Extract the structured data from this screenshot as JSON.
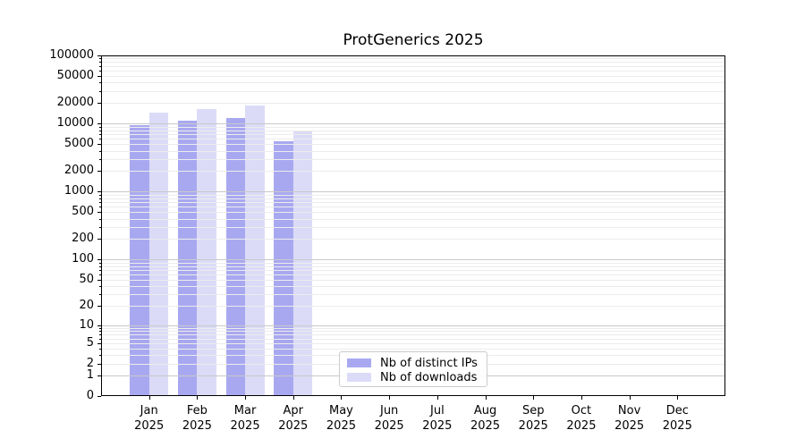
{
  "chart_data": {
    "type": "bar",
    "title": "ProtGenerics 2025",
    "x_ticks": [
      {
        "month": "Jan",
        "year": "2025"
      },
      {
        "month": "Feb",
        "year": "2025"
      },
      {
        "month": "Mar",
        "year": "2025"
      },
      {
        "month": "Apr",
        "year": "2025"
      },
      {
        "month": "May",
        "year": "2025"
      },
      {
        "month": "Jun",
        "year": "2025"
      },
      {
        "month": "Jul",
        "year": "2025"
      },
      {
        "month": "Aug",
        "year": "2025"
      },
      {
        "month": "Sep",
        "year": "2025"
      },
      {
        "month": "Oct",
        "year": "2025"
      },
      {
        "month": "Nov",
        "year": "2025"
      },
      {
        "month": "Dec",
        "year": "2025"
      }
    ],
    "series": [
      {
        "name": "Nb of distinct IPs",
        "color": "#a8a8f1",
        "values": [
          9500,
          10900,
          12000,
          5500,
          null,
          null,
          null,
          null,
          null,
          null,
          null,
          null
        ]
      },
      {
        "name": "Nb of downloads",
        "color": "#dbdbf8",
        "values": [
          14500,
          16200,
          18400,
          7700,
          null,
          null,
          null,
          null,
          null,
          null,
          null,
          null
        ]
      }
    ],
    "y_axis": {
      "scale": "log10(value+1)",
      "min": 0,
      "max": 100000,
      "ticks": [
        {
          "label": "100000",
          "value": 100000
        },
        {
          "label": "50000",
          "value": 50000
        },
        {
          "label": "20000",
          "value": 20000
        },
        {
          "label": "10000",
          "value": 10000
        },
        {
          "label": "5000",
          "value": 5000
        },
        {
          "label": "2000",
          "value": 2000
        },
        {
          "label": "1000",
          "value": 1000
        },
        {
          "label": "500",
          "value": 500
        },
        {
          "label": "200",
          "value": 200
        },
        {
          "label": "100",
          "value": 100
        },
        {
          "label": "50",
          "value": 50
        },
        {
          "label": "20",
          "value": 20
        },
        {
          "label": "10",
          "value": 10
        },
        {
          "label": "5",
          "value": 5
        },
        {
          "label": "2",
          "value": 2
        },
        {
          "label": "1",
          "value": 1
        },
        {
          "label": "0",
          "value": 0
        }
      ]
    },
    "grid": true,
    "legend_position": "lower-center"
  }
}
